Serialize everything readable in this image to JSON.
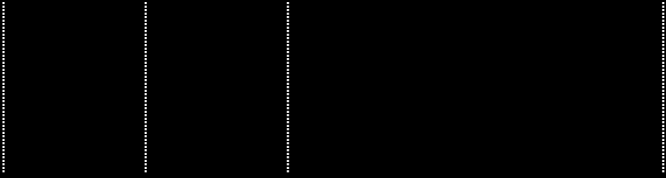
{
  "chart_data": {
    "type": "line",
    "series": [],
    "xlim": [
      0,
      937
    ],
    "xticks": [
      0,
      202,
      404,
      937
    ],
    "grid": true,
    "tick_labels": false
  }
}
